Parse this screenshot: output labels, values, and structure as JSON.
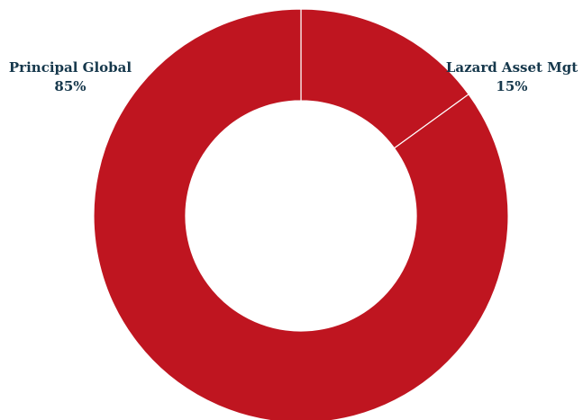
{
  "chart_data": {
    "type": "pie",
    "donut": true,
    "title": "",
    "slices": [
      {
        "label": "Lazard Asset Mgt",
        "value": 15,
        "value_label": "15%"
      },
      {
        "label": "Principal Global",
        "value": 85,
        "value_label": "85%"
      }
    ],
    "legend": "none"
  },
  "colors": {
    "slice_fill": "#bf1520",
    "label_text": "#16384c",
    "background": "#ffffff"
  }
}
